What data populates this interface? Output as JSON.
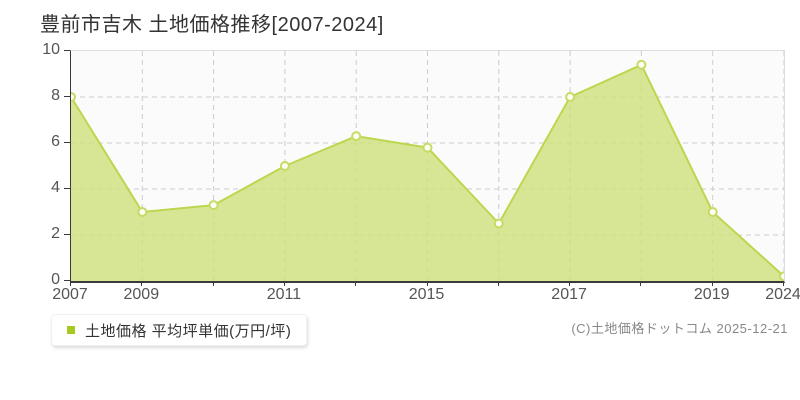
{
  "page": {
    "title": "豊前市吉木 土地価格推移[2007-2024]",
    "copyright": "(C)土地価格ドットコム 2025-12-21"
  },
  "legend": {
    "label": "土地価格 平均坪単価(万円/坪)",
    "marker_color": "#a6c920"
  },
  "chart_data": {
    "type": "area",
    "title": "豊前市吉木 土地価格推移[2007-2024]",
    "series_name": "土地価格 平均坪単価(万円/坪)",
    "x": [
      2007,
      2009,
      2010,
      2011,
      2013,
      2015,
      2016,
      2017,
      2018,
      2019,
      2024
    ],
    "x_tick_labels": [
      "2007",
      "2009",
      "",
      "2011",
      "",
      "2015",
      "",
      "2017",
      "",
      "2019",
      "2024"
    ],
    "values": [
      8.0,
      3.0,
      3.3,
      5.0,
      6.3,
      5.8,
      2.5,
      8.0,
      9.4,
      3.0,
      0.2
    ],
    "unit": "万円/坪",
    "y_ticks": [
      0,
      2,
      4,
      6,
      8,
      10
    ],
    "ylim": [
      0,
      10
    ],
    "grid": true,
    "x_spacing": "ordinal-equal",
    "legend_position": "bottom-left",
    "colors": {
      "area_fill": "rgba(206,224,125,0.82)",
      "line": "#bcd64f",
      "marker_fill": "#fdfdf4",
      "marker_stroke": "#c6db64",
      "grid": "#cccccc",
      "axis": "#3a3a3a",
      "plot_bg": "#fbfbfb"
    }
  }
}
